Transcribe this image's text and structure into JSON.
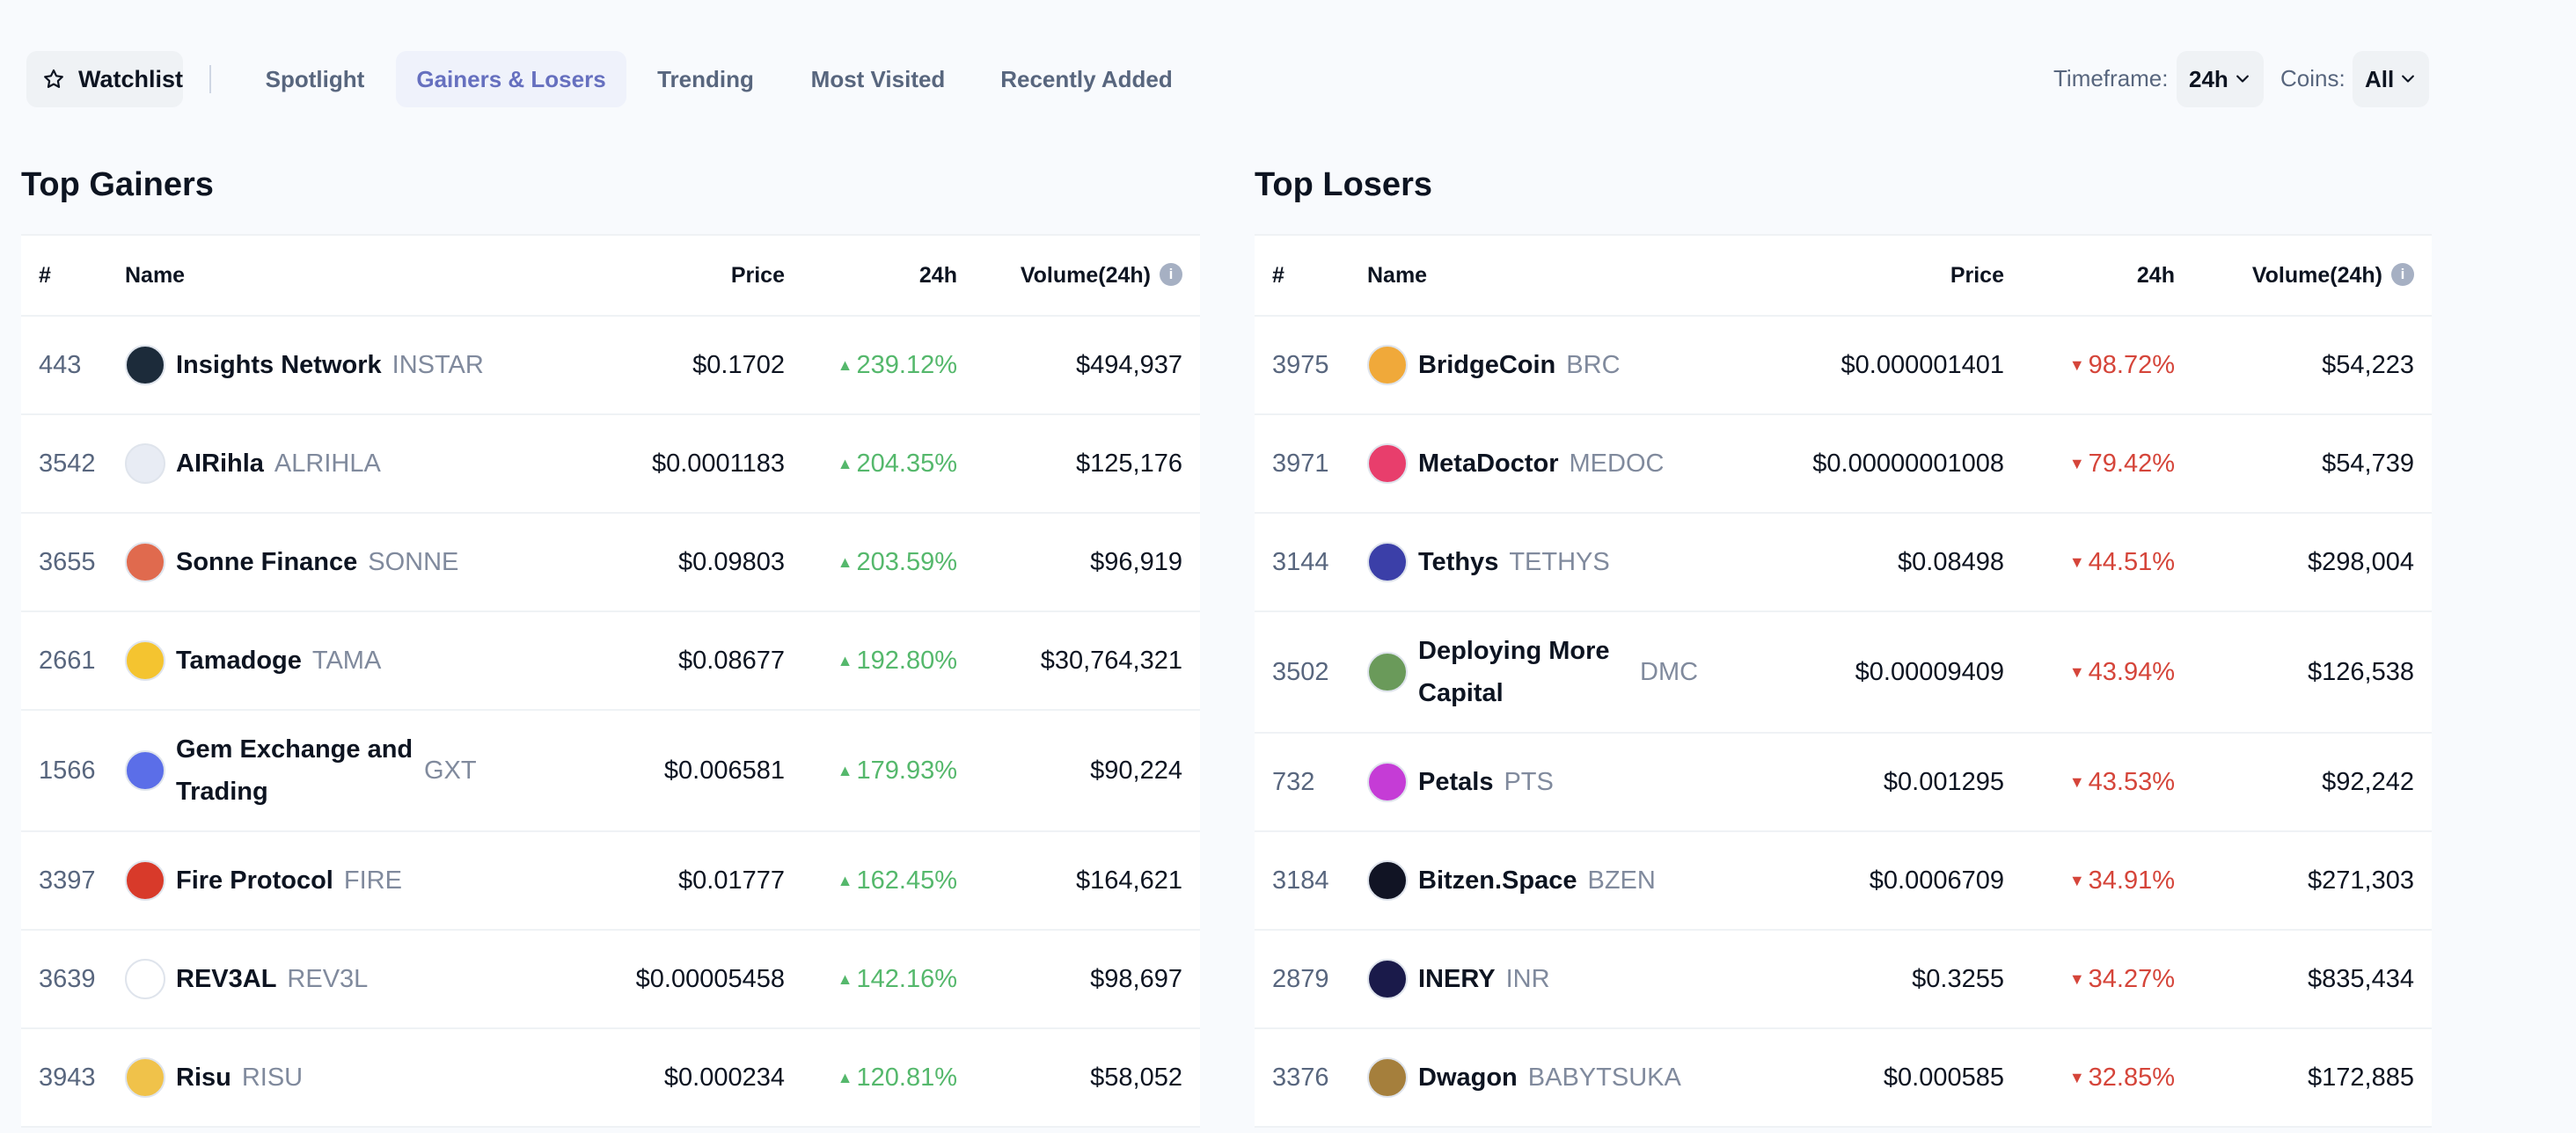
{
  "nav": {
    "watchlist": "Watchlist",
    "tabs": [
      {
        "label": "Spotlight",
        "active": false
      },
      {
        "label": "Gainers & Losers",
        "active": true
      },
      {
        "label": "Trending",
        "active": false
      },
      {
        "label": "Most Visited",
        "active": false
      },
      {
        "label": "Recently Added",
        "active": false
      }
    ],
    "timeframe_label": "Timeframe:",
    "timeframe_value": "24h",
    "coins_label": "Coins:",
    "coins_value": "All"
  },
  "columns": {
    "rank": "#",
    "name": "Name",
    "price": "Price",
    "change": "24h",
    "volume": "Volume(24h)"
  },
  "gainers": {
    "title": "Top Gainers",
    "rows": [
      {
        "rank": "443",
        "name": "Insights Network",
        "symbol": "INSTAR",
        "price": "$0.1702",
        "change": "239.12%",
        "volume": "$494,937",
        "icon": "insights-network-icon",
        "color": "#1c2b3a"
      },
      {
        "rank": "3542",
        "name": "AIRihla",
        "symbol": "ALRIHLA",
        "price": "$0.0001183",
        "change": "204.35%",
        "volume": "$125,176",
        "icon": "airihla-icon",
        "color": "#e8ecf4"
      },
      {
        "rank": "3655",
        "name": "Sonne Finance",
        "symbol": "SONNE",
        "price": "$0.09803",
        "change": "203.59%",
        "volume": "$96,919",
        "icon": "sonne-finance-icon",
        "color": "#e06a4e"
      },
      {
        "rank": "2661",
        "name": "Tamadoge",
        "symbol": "TAMA",
        "price": "$0.08677",
        "change": "192.80%",
        "volume": "$30,764,321",
        "icon": "tamadoge-icon",
        "color": "#f4c430"
      },
      {
        "rank": "1566",
        "name": "Gem Exchange and Trading",
        "symbol": "GXT",
        "price": "$0.006581",
        "change": "179.93%",
        "volume": "$90,224",
        "icon": "gem-exchange-icon",
        "color": "#5b6ee8"
      },
      {
        "rank": "3397",
        "name": "Fire Protocol",
        "symbol": "FIRE",
        "price": "$0.01777",
        "change": "162.45%",
        "volume": "$164,621",
        "icon": "fire-protocol-icon",
        "color": "#d83a2a"
      },
      {
        "rank": "3639",
        "name": "REV3AL",
        "symbol": "REV3L",
        "price": "$0.00005458",
        "change": "142.16%",
        "volume": "$98,697",
        "icon": "rev3al-icon",
        "color": "#ffffff"
      },
      {
        "rank": "3943",
        "name": "Risu",
        "symbol": "RISU",
        "price": "$0.000234",
        "change": "120.81%",
        "volume": "$58,052",
        "icon": "risu-icon",
        "color": "#f0c24a"
      }
    ]
  },
  "losers": {
    "title": "Top Losers",
    "rows": [
      {
        "rank": "3975",
        "name": "BridgeCoin",
        "symbol": "BRC",
        "price": "$0.000001401",
        "change": "98.72%",
        "volume": "$54,223",
        "icon": "bridgecoin-icon",
        "color": "#f0a93a"
      },
      {
        "rank": "3971",
        "name": "MetaDoctor",
        "symbol": "MEDOC",
        "price": "$0.00000001008",
        "change": "79.42%",
        "volume": "$54,739",
        "icon": "metadoctor-icon",
        "color": "#e83e6c"
      },
      {
        "rank": "3144",
        "name": "Tethys",
        "symbol": "TETHYS",
        "price": "$0.08498",
        "change": "44.51%",
        "volume": "$298,004",
        "icon": "tethys-icon",
        "color": "#3b3fa8"
      },
      {
        "rank": "3502",
        "name": "Deploying More Capital",
        "symbol": "DMC",
        "price": "$0.00009409",
        "change": "43.94%",
        "volume": "$126,538",
        "icon": "dmc-icon",
        "color": "#6a9a5a"
      },
      {
        "rank": "732",
        "name": "Petals",
        "symbol": "PTS",
        "price": "$0.001295",
        "change": "43.53%",
        "volume": "$92,242",
        "icon": "petals-icon",
        "color": "#c53cd6"
      },
      {
        "rank": "3184",
        "name": "Bitzen.Space",
        "symbol": "BZEN",
        "price": "$0.0006709",
        "change": "34.91%",
        "volume": "$271,303",
        "icon": "bitzen-icon",
        "color": "#111424"
      },
      {
        "rank": "2879",
        "name": "INERY",
        "symbol": "INR",
        "price": "$0.3255",
        "change": "34.27%",
        "volume": "$835,434",
        "icon": "inery-icon",
        "color": "#1a1a4a"
      },
      {
        "rank": "3376",
        "name": "Dwagon",
        "symbol": "BABYTSUKA",
        "price": "$0.000585",
        "change": "32.85%",
        "volume": "$172,885",
        "icon": "dwagon-icon",
        "color": "#a57f3c"
      }
    ]
  }
}
